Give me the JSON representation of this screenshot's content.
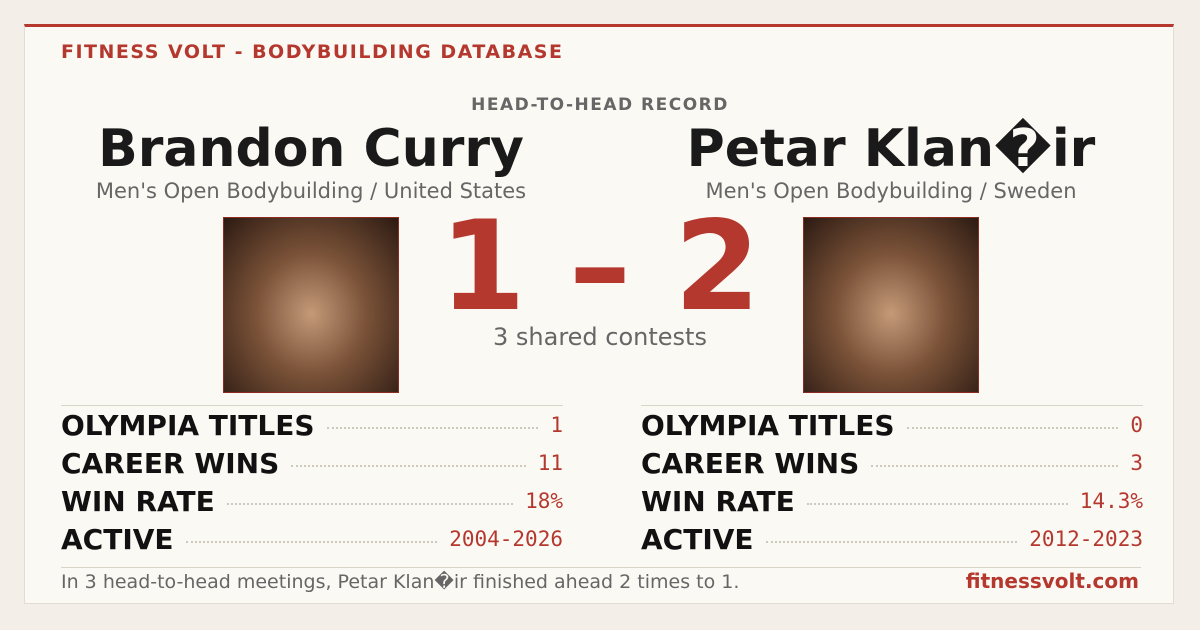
{
  "header": {
    "brand": "FITNESS VOLT - BODYBUILDING DATABASE",
    "subtitle": "HEAD-TO-HEAD RECORD"
  },
  "athletes": [
    {
      "name": "Brandon Curry",
      "division": "Men's Open Bodybuilding / United States",
      "stats": [
        {
          "label": "OLYMPIA TITLES",
          "value": "1"
        },
        {
          "label": "CAREER WINS",
          "value": "11"
        },
        {
          "label": "WIN RATE",
          "value": "18%"
        },
        {
          "label": "ACTIVE",
          "value": "2004-2026"
        }
      ]
    },
    {
      "name": "Petar Klan�ir",
      "division": "Men's Open Bodybuilding / Sweden",
      "stats": [
        {
          "label": "OLYMPIA TITLES",
          "value": "0"
        },
        {
          "label": "CAREER WINS",
          "value": "3"
        },
        {
          "label": "WIN RATE",
          "value": "14.3%"
        },
        {
          "label": "ACTIVE",
          "value": "2012-2023"
        }
      ]
    }
  ],
  "score": {
    "left": "1",
    "separator": "–",
    "right": "2",
    "caption": "3 shared contests"
  },
  "footer": {
    "summary": "In 3 head-to-head meetings, Petar Klan�ir finished ahead 2 times to 1.",
    "site": "fitnessvolt.com"
  }
}
